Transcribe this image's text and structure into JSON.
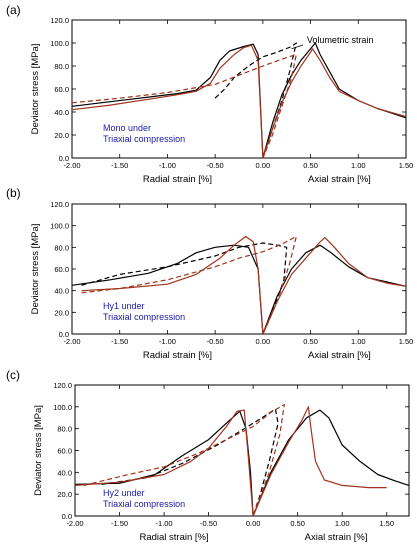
{
  "chart_data": [
    {
      "type": "line",
      "panel_label": "(a)",
      "ylabel": "Deviator stress [MPa]",
      "xlabel_left": "Radial strain [%]",
      "xlabel_right": "Axial strain [%]",
      "annotation": "Volumetric strain",
      "note_lines": [
        "Mono under",
        "Triaxial compression"
      ],
      "xlim": [
        -2.0,
        1.5
      ],
      "ylim": [
        0,
        120
      ],
      "x_ticks": [
        -2.0,
        -1.5,
        -1.0,
        -0.5,
        0.0,
        0.5,
        1.0,
        1.5
      ],
      "x_tick_labels": [
        "-2.00",
        "-1.50",
        "-1.00",
        "-0.50",
        "0.00",
        "0.50",
        "1.00",
        "1.50"
      ],
      "y_ticks": [
        0,
        20,
        40,
        60,
        80,
        100,
        120
      ],
      "y_tick_labels": [
        "0.0",
        "20.0",
        "40.0",
        "60.0",
        "80.0",
        "100.0",
        "120.0"
      ],
      "grid": false,
      "series": [
        {
          "color": "#000000",
          "dash": "",
          "points": [
            [
              -2.0,
              45
            ],
            [
              -1.6,
              49
            ],
            [
              -1.2,
              53
            ],
            [
              -0.9,
              56
            ],
            [
              -0.7,
              59
            ],
            [
              -0.55,
              70
            ],
            [
              -0.45,
              85
            ],
            [
              -0.35,
              93
            ],
            [
              -0.2,
              97
            ],
            [
              -0.1,
              99
            ],
            [
              -0.05,
              90
            ],
            [
              0.0,
              0
            ]
          ]
        },
        {
          "color": "#000000",
          "dash": "",
          "points": [
            [
              0.0,
              0
            ],
            [
              0.1,
              30
            ],
            [
              0.2,
              55
            ],
            [
              0.3,
              72
            ],
            [
              0.4,
              85
            ],
            [
              0.5,
              95
            ],
            [
              0.55,
              100
            ],
            [
              0.6,
              90
            ],
            [
              0.7,
              75
            ],
            [
              0.8,
              60
            ],
            [
              1.0,
              50
            ],
            [
              1.2,
              43
            ],
            [
              1.5,
              35
            ]
          ]
        },
        {
          "color": "#000000",
          "dash": "5,3",
          "points": [
            [
              -0.5,
              52
            ],
            [
              -0.4,
              60
            ],
            [
              -0.3,
              70
            ],
            [
              -0.15,
              80
            ],
            [
              0.0,
              88
            ],
            [
              0.15,
              92
            ],
            [
              0.3,
              97
            ],
            [
              0.35,
              100
            ],
            [
              0.28,
              75
            ],
            [
              0.2,
              50
            ],
            [
              0.1,
              25
            ],
            [
              0.0,
              0
            ]
          ]
        },
        {
          "color": "#a0341e",
          "dash": "",
          "points": [
            [
              -2.0,
              42
            ],
            [
              -1.6,
              46
            ],
            [
              -1.2,
              51
            ],
            [
              -0.9,
              55
            ],
            [
              -0.7,
              58
            ],
            [
              -0.55,
              65
            ],
            [
              -0.45,
              78
            ],
            [
              -0.3,
              90
            ],
            [
              -0.2,
              96
            ],
            [
              -0.12,
              98
            ],
            [
              -0.05,
              85
            ],
            [
              0.0,
              0
            ]
          ]
        },
        {
          "color": "#a0341e",
          "dash": "",
          "points": [
            [
              0.0,
              0
            ],
            [
              0.1,
              25
            ],
            [
              0.2,
              48
            ],
            [
              0.3,
              66
            ],
            [
              0.4,
              80
            ],
            [
              0.5,
              92
            ],
            [
              0.52,
              95
            ],
            [
              0.6,
              85
            ],
            [
              0.7,
              70
            ],
            [
              0.8,
              58
            ],
            [
              1.0,
              50
            ],
            [
              1.2,
              43
            ],
            [
              1.5,
              36
            ]
          ]
        },
        {
          "color": "#a0341e",
          "dash": "5,3",
          "points": [
            [
              -2.0,
              48
            ],
            [
              -1.5,
              52
            ],
            [
              -1.0,
              57
            ],
            [
              -0.5,
              64
            ],
            [
              -0.25,
              72
            ],
            [
              0.0,
              80
            ],
            [
              0.2,
              86
            ],
            [
              0.35,
              90
            ],
            [
              0.3,
              70
            ],
            [
              0.2,
              45
            ],
            [
              0.1,
              20
            ],
            [
              0.0,
              0
            ]
          ]
        }
      ]
    },
    {
      "type": "line",
      "panel_label": "(b)",
      "ylabel": "Deviator stress [MPa]",
      "xlabel_left": "Radial strain [%]",
      "xlabel_right": "Axial strain [%]",
      "annotation": "",
      "note_lines": [
        "Hy1 under",
        "Triaxial compression"
      ],
      "xlim": [
        -2.0,
        1.5
      ],
      "ylim": [
        0,
        120
      ],
      "x_ticks": [
        -2.0,
        -1.5,
        -1.0,
        -0.5,
        0.0,
        0.5,
        1.0,
        1.5
      ],
      "x_tick_labels": [
        "-2.00",
        "-1.50",
        "-1.00",
        "-0.50",
        "0.00",
        "0.50",
        "1.00",
        "1.50"
      ],
      "y_ticks": [
        0,
        20,
        40,
        60,
        80,
        100,
        120
      ],
      "y_tick_labels": [
        "0.0",
        "20.0",
        "40.0",
        "60.0",
        "80.0",
        "100.0",
        "120.0"
      ],
      "grid": false,
      "series": [
        {
          "color": "#000000",
          "dash": "",
          "points": [
            [
              -2.0,
              45
            ],
            [
              -1.6,
              50
            ],
            [
              -1.2,
              56
            ],
            [
              -0.9,
              65
            ],
            [
              -0.7,
              75
            ],
            [
              -0.5,
              80
            ],
            [
              -0.3,
              82
            ],
            [
              -0.15,
              80
            ],
            [
              -0.05,
              60
            ],
            [
              0.0,
              0
            ]
          ]
        },
        {
          "color": "#000000",
          "dash": "",
          "points": [
            [
              0.0,
              0
            ],
            [
              0.15,
              35
            ],
            [
              0.3,
              60
            ],
            [
              0.45,
              75
            ],
            [
              0.6,
              82
            ],
            [
              0.7,
              76
            ],
            [
              0.9,
              62
            ],
            [
              1.1,
              52
            ],
            [
              1.3,
              48
            ],
            [
              1.5,
              44
            ]
          ]
        },
        {
          "color": "#000000",
          "dash": "5,3",
          "points": [
            [
              -1.9,
              45
            ],
            [
              -1.5,
              55
            ],
            [
              -1.0,
              62
            ],
            [
              -0.5,
              72
            ],
            [
              -0.25,
              80
            ],
            [
              0.0,
              84
            ],
            [
              0.15,
              82
            ],
            [
              0.25,
              80
            ],
            [
              0.22,
              50
            ],
            [
              0.1,
              20
            ],
            [
              0.0,
              0
            ]
          ]
        },
        {
          "color": "#a0341e",
          "dash": "",
          "points": [
            [
              -1.9,
              40
            ],
            [
              -1.5,
              42
            ],
            [
              -1.0,
              46
            ],
            [
              -0.7,
              55
            ],
            [
              -0.45,
              70
            ],
            [
              -0.3,
              82
            ],
            [
              -0.18,
              90
            ],
            [
              -0.1,
              85
            ],
            [
              -0.05,
              60
            ],
            [
              0.0,
              0
            ]
          ]
        },
        {
          "color": "#a0341e",
          "dash": "",
          "points": [
            [
              0.0,
              0
            ],
            [
              0.15,
              30
            ],
            [
              0.3,
              55
            ],
            [
              0.45,
              70
            ],
            [
              0.6,
              85
            ],
            [
              0.65,
              89
            ],
            [
              0.75,
              80
            ],
            [
              0.9,
              65
            ],
            [
              1.1,
              52
            ],
            [
              1.3,
              47
            ],
            [
              1.5,
              44
            ]
          ]
        },
        {
          "color": "#a0341e",
          "dash": "5,3",
          "points": [
            [
              -1.9,
              38
            ],
            [
              -1.5,
              42
            ],
            [
              -1.0,
              50
            ],
            [
              -0.5,
              62
            ],
            [
              -0.25,
              70
            ],
            [
              0.0,
              76
            ],
            [
              0.2,
              83
            ],
            [
              0.35,
              90
            ],
            [
              0.28,
              65
            ],
            [
              0.15,
              30
            ],
            [
              0.0,
              0
            ]
          ]
        }
      ]
    },
    {
      "type": "line",
      "panel_label": "(c)",
      "ylabel": "Deviator stress [MPa]",
      "xlabel_left": "Radial strain [%]",
      "xlabel_right": "Axial strain [%]",
      "annotation": "",
      "note_lines": [
        "Hy2 under",
        "Triaxial compression"
      ],
      "xlim": [
        -2.0,
        1.75
      ],
      "ylim": [
        0,
        120
      ],
      "x_ticks": [
        -2.0,
        -1.5,
        -1.0,
        -0.5,
        0.0,
        0.5,
        1.0,
        1.5
      ],
      "x_tick_labels": [
        "-2.00",
        "-1.50",
        "-1.00",
        "-0.50",
        "0.00",
        "0.50",
        "1.00",
        "1.50"
      ],
      "y_ticks": [
        0,
        20,
        40,
        60,
        80,
        100,
        120
      ],
      "y_tick_labels": [
        "0.0",
        "20.0",
        "40.0",
        "60.0",
        "80.0",
        "100.0",
        "120.0"
      ],
      "grid": false,
      "series": [
        {
          "color": "#000000",
          "dash": "",
          "points": [
            [
              -2.0,
              29
            ],
            [
              -1.5,
              30
            ],
            [
              -1.1,
              38
            ],
            [
              -0.8,
              55
            ],
            [
              -0.5,
              70
            ],
            [
              -0.3,
              85
            ],
            [
              -0.15,
              96
            ],
            [
              -0.08,
              80
            ],
            [
              -0.03,
              40
            ],
            [
              0.0,
              0
            ]
          ]
        },
        {
          "color": "#000000",
          "dash": "",
          "points": [
            [
              0.0,
              0
            ],
            [
              0.2,
              40
            ],
            [
              0.4,
              70
            ],
            [
              0.6,
              90
            ],
            [
              0.75,
              97
            ],
            [
              0.85,
              90
            ],
            [
              1.0,
              65
            ],
            [
              1.2,
              50
            ],
            [
              1.4,
              38
            ],
            [
              1.6,
              32
            ],
            [
              1.75,
              28
            ]
          ]
        },
        {
          "color": "#000000",
          "dash": "5,3",
          "points": [
            [
              -1.7,
              29
            ],
            [
              -1.2,
              35
            ],
            [
              -0.8,
              48
            ],
            [
              -0.4,
              65
            ],
            [
              -0.1,
              80
            ],
            [
              0.1,
              90
            ],
            [
              0.25,
              98
            ],
            [
              0.28,
              85
            ],
            [
              0.18,
              50
            ],
            [
              0.08,
              20
            ],
            [
              0.0,
              0
            ]
          ]
        },
        {
          "color": "#a0341e",
          "dash": "",
          "points": [
            [
              -2.0,
              28
            ],
            [
              -1.5,
              31
            ],
            [
              -1.0,
              38
            ],
            [
              -0.7,
              50
            ],
            [
              -0.5,
              62
            ],
            [
              -0.3,
              82
            ],
            [
              -0.18,
              96
            ],
            [
              -0.1,
              97
            ],
            [
              -0.05,
              50
            ],
            [
              0.0,
              0
            ]
          ]
        },
        {
          "color": "#a0341e",
          "dash": "",
          "points": [
            [
              0.0,
              0
            ],
            [
              0.2,
              38
            ],
            [
              0.4,
              68
            ],
            [
              0.55,
              88
            ],
            [
              0.62,
              100
            ],
            [
              0.65,
              80
            ],
            [
              0.7,
              50
            ],
            [
              0.8,
              33
            ],
            [
              1.0,
              28
            ],
            [
              1.3,
              26
            ],
            [
              1.5,
              26
            ]
          ]
        },
        {
          "color": "#a0341e",
          "dash": "5,3",
          "points": [
            [
              -1.9,
              28
            ],
            [
              -1.4,
              38
            ],
            [
              -1.0,
              45
            ],
            [
              -0.6,
              58
            ],
            [
              -0.3,
              70
            ],
            [
              0.0,
              82
            ],
            [
              0.2,
              95
            ],
            [
              0.35,
              102
            ],
            [
              0.3,
              75
            ],
            [
              0.18,
              40
            ],
            [
              0.0,
              0
            ]
          ]
        }
      ]
    }
  ]
}
